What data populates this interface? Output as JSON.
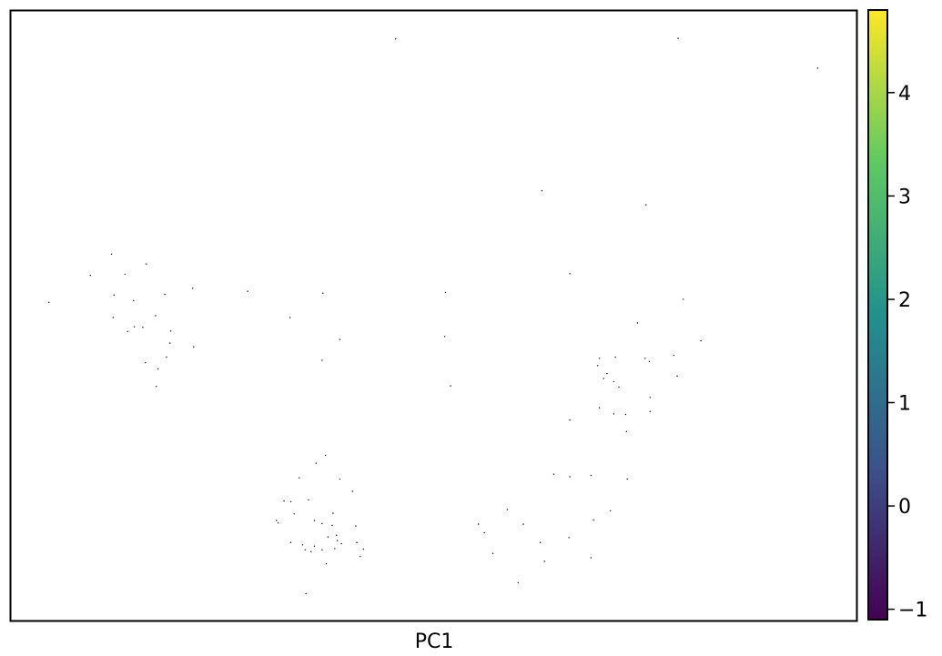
{
  "chart_data": {
    "type": "scatter",
    "xlabel": "PC1",
    "ylabel": "",
    "x_ticks_shown": false,
    "y_ticks_shown": false,
    "grid": false,
    "colorbar": {
      "orientation": "vertical",
      "placement": "right",
      "colormap": "viridis",
      "range": [
        -1.1,
        4.8
      ],
      "ticks": [
        {
          "value": 4,
          "label": "4"
        },
        {
          "value": 3,
          "label": "3"
        },
        {
          "value": 2,
          "label": "2"
        },
        {
          "value": 1,
          "label": "1"
        },
        {
          "value": 0,
          "label": "0"
        },
        {
          "value": -1,
          "label": "−1"
        }
      ],
      "stops": [
        "#440154",
        "#3b528b",
        "#21918c",
        "#5ec962",
        "#fde725"
      ]
    },
    "point_color": "#000000",
    "xlim": [
      0,
      1
    ],
    "ylim": [
      0,
      1
    ],
    "points": [
      [
        0.455,
        0.954
      ],
      [
        0.789,
        0.955
      ],
      [
        0.954,
        0.906
      ],
      [
        0.628,
        0.705
      ],
      [
        0.751,
        0.682
      ],
      [
        0.119,
        0.601
      ],
      [
        0.16,
        0.585
      ],
      [
        0.135,
        0.568
      ],
      [
        0.094,
        0.566
      ],
      [
        0.215,
        0.545
      ],
      [
        0.28,
        0.54
      ],
      [
        0.369,
        0.537
      ],
      [
        0.514,
        0.538
      ],
      [
        0.122,
        0.534
      ],
      [
        0.182,
        0.535
      ],
      [
        0.145,
        0.525
      ],
      [
        0.045,
        0.522
      ],
      [
        0.795,
        0.527
      ],
      [
        0.661,
        0.569
      ],
      [
        0.121,
        0.497
      ],
      [
        0.33,
        0.497
      ],
      [
        0.171,
        0.5
      ],
      [
        0.146,
        0.482
      ],
      [
        0.156,
        0.481
      ],
      [
        0.138,
        0.474
      ],
      [
        0.189,
        0.475
      ],
      [
        0.741,
        0.488
      ],
      [
        0.188,
        0.455
      ],
      [
        0.389,
        0.461
      ],
      [
        0.513,
        0.466
      ],
      [
        0.816,
        0.459
      ],
      [
        0.216,
        0.449
      ],
      [
        0.784,
        0.435
      ],
      [
        0.75,
        0.43
      ],
      [
        0.755,
        0.425
      ],
      [
        0.715,
        0.432
      ],
      [
        0.696,
        0.43
      ],
      [
        0.159,
        0.423
      ],
      [
        0.184,
        0.432
      ],
      [
        0.174,
        0.413
      ],
      [
        0.368,
        0.427
      ],
      [
        0.694,
        0.418
      ],
      [
        0.705,
        0.405
      ],
      [
        0.788,
        0.401
      ],
      [
        0.701,
        0.397
      ],
      [
        0.713,
        0.392
      ],
      [
        0.172,
        0.384
      ],
      [
        0.52,
        0.385
      ],
      [
        0.719,
        0.383
      ],
      [
        0.756,
        0.366
      ],
      [
        0.696,
        0.349
      ],
      [
        0.756,
        0.343
      ],
      [
        0.727,
        0.338
      ],
      [
        0.713,
        0.339
      ],
      [
        0.661,
        0.329
      ],
      [
        0.728,
        0.31
      ],
      [
        0.372,
        0.271
      ],
      [
        0.361,
        0.258
      ],
      [
        0.341,
        0.234
      ],
      [
        0.389,
        0.232
      ],
      [
        0.642,
        0.24
      ],
      [
        0.661,
        0.236
      ],
      [
        0.686,
        0.238
      ],
      [
        0.729,
        0.232
      ],
      [
        0.404,
        0.212
      ],
      [
        0.323,
        0.196
      ],
      [
        0.331,
        0.195
      ],
      [
        0.352,
        0.198
      ],
      [
        0.335,
        0.175
      ],
      [
        0.381,
        0.176
      ],
      [
        0.587,
        0.182
      ],
      [
        0.709,
        0.18
      ],
      [
        0.314,
        0.164
      ],
      [
        0.359,
        0.164
      ],
      [
        0.368,
        0.159
      ],
      [
        0.689,
        0.165
      ],
      [
        0.553,
        0.158
      ],
      [
        0.606,
        0.158
      ],
      [
        0.38,
        0.156
      ],
      [
        0.408,
        0.155
      ],
      [
        0.316,
        0.16
      ],
      [
        0.56,
        0.144
      ],
      [
        0.385,
        0.14
      ],
      [
        0.375,
        0.137
      ],
      [
        0.66,
        0.136
      ],
      [
        0.386,
        0.131
      ],
      [
        0.331,
        0.128
      ],
      [
        0.345,
        0.124
      ],
      [
        0.359,
        0.122
      ],
      [
        0.391,
        0.126
      ],
      [
        0.409,
        0.128
      ],
      [
        0.626,
        0.128
      ],
      [
        0.348,
        0.116
      ],
      [
        0.368,
        0.116
      ],
      [
        0.383,
        0.118
      ],
      [
        0.417,
        0.117
      ],
      [
        0.413,
        0.105
      ],
      [
        0.57,
        0.11
      ],
      [
        0.355,
        0.113
      ],
      [
        0.686,
        0.103
      ],
      [
        0.373,
        0.093
      ],
      [
        0.631,
        0.097
      ],
      [
        0.6,
        0.062
      ],
      [
        0.349,
        0.044
      ]
    ]
  }
}
